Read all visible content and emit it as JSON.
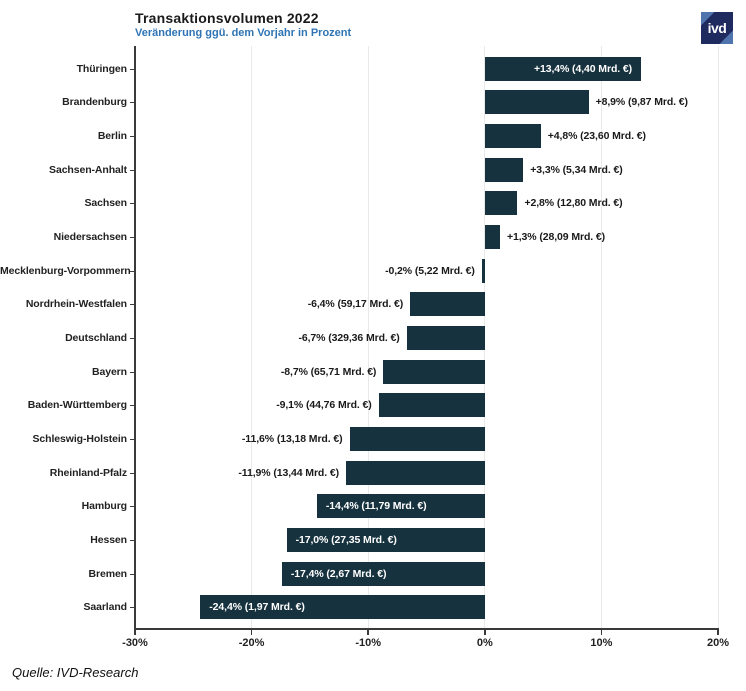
{
  "header": {
    "title": "Transaktionsvolumen 2022",
    "subtitle": "Veränderung ggü. dem Vorjahr in Prozent",
    "accent_color": "#2e74b5",
    "logo_text": "ivd",
    "logo_bg_color": "#1f2a5f",
    "logo_accent_color": "#5074ae"
  },
  "chart_data": {
    "type": "bar",
    "orientation": "horizontal",
    "title": "Transaktionsvolumen 2022",
    "subtitle": "Veränderung ggü. dem Vorjahr in Prozent",
    "xlabel": "",
    "ylabel": "",
    "xlim": [
      -30,
      20
    ],
    "x_ticks": [
      -30,
      -20,
      -10,
      0,
      10,
      20
    ],
    "x_tick_labels": [
      "-30%",
      "-20%",
      "-10%",
      "0%",
      "10%",
      "20%"
    ],
    "grid": true,
    "bar_color": "#16323e",
    "categories": [
      "Thüringen",
      "Brandenburg",
      "Berlin",
      "Sachsen-Anhalt",
      "Sachsen",
      "Niedersachsen",
      "Mecklenburg-Vorpommern",
      "Nordrhein-Westfalen",
      "Deutschland",
      "Bayern",
      "Baden-Württemberg",
      "Schleswig-Holstein",
      "Rheinland-Pfalz",
      "Hamburg",
      "Hessen",
      "Bremen",
      "Saarland"
    ],
    "values": [
      13.4,
      8.9,
      4.8,
      3.3,
      2.8,
      1.3,
      -0.2,
      -6.4,
      -6.7,
      -8.7,
      -9.1,
      -11.6,
      -11.9,
      -14.4,
      -17.0,
      -17.4,
      -24.4
    ],
    "volumes_mrd_eur": [
      4.4,
      9.87,
      23.6,
      5.34,
      12.8,
      28.09,
      5.22,
      59.17,
      329.36,
      65.71,
      44.76,
      13.18,
      13.44,
      11.79,
      27.35,
      2.67,
      1.97
    ],
    "bar_labels": [
      "+13,4% (4,40 Mrd. €)",
      "+8,9% (9,87 Mrd. €)",
      "+4,8% (23,60 Mrd. €)",
      "+3,3% (5,34 Mrd. €)",
      "+2,8% (12,80 Mrd. €)",
      "+1,3% (28,09 Mrd. €)",
      "-0,2% (5,22 Mrd. €)",
      "-6,4% (59,17 Mrd. €)",
      "-6,7% (329,36 Mrd. €)",
      "-8,7% (65,71 Mrd. €)",
      "-9,1% (44,76 Mrd. €)",
      "-11,6% (13,18 Mrd. €)",
      "-11,9% (13,44 Mrd. €)",
      "-14,4% (11,79 Mrd. €)",
      "-17,0% (27,35 Mrd. €)",
      "-17,4% (2,67 Mrd. €)",
      "-24,4% (1,97 Mrd. €)"
    ]
  },
  "footer": {
    "source": "Quelle: IVD-Research"
  }
}
